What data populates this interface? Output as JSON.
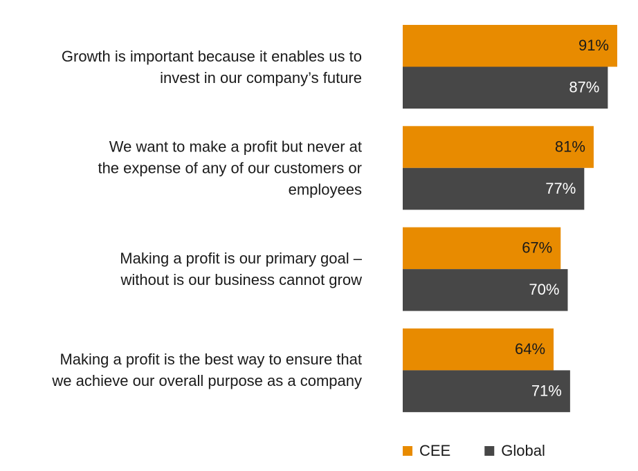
{
  "chart_data": {
    "type": "bar",
    "orientation": "horizontal",
    "categories": [
      "Growth is important because it enables us to\ninvest in our company’s future",
      "We want to make a profit but never at\nthe expense of any of our customers or\nemployees",
      "Making a profit is our primary goal –\nwithout is our business cannot grow",
      "Making a profit is the best way to ensure that\nwe achieve our overall purpose as a company"
    ],
    "series": [
      {
        "name": "CEE",
        "color": "#e88b00",
        "label_color": "#1a1a1a",
        "values": [
          91,
          81,
          67,
          64
        ],
        "value_labels": [
          "91%",
          "81%",
          "67%",
          "64%"
        ]
      },
      {
        "name": "Global",
        "color": "#474747",
        "label_color": "#ffffff",
        "values": [
          87,
          77,
          70,
          71
        ],
        "value_labels": [
          "87%",
          "77%",
          "70%",
          "71%"
        ]
      }
    ]
  }
}
